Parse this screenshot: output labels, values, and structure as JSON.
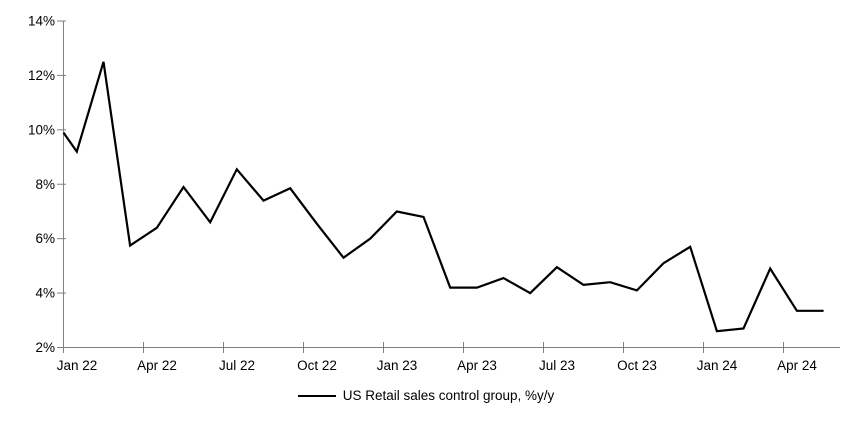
{
  "chart_data": {
    "type": "line",
    "title": "",
    "xlabel": "",
    "ylabel": "",
    "ylim": [
      2,
      14
    ],
    "y_tick_step": 2,
    "grid": false,
    "legend_position": "bottom-center",
    "axis_color": "#808080",
    "background_color": "#ffffff",
    "y_tick_labels": [
      "2%",
      "4%",
      "6%",
      "8%",
      "10%",
      "12%",
      "14%"
    ],
    "x_tick_labels": [
      "Jan 22",
      "Apr 22",
      "Jul 22",
      "Oct 22",
      "Jan 23",
      "Apr 23",
      "Jul 23",
      "Oct 23",
      "Jan 24",
      "Apr 24"
    ],
    "series": [
      {
        "name": "US Retail sales control group, %y/y",
        "color": "#000000",
        "x": [
          "Dec 21",
          "Jan 22",
          "Feb 22",
          "Mar 22",
          "Apr 22",
          "May 22",
          "Jun 22",
          "Jul 22",
          "Aug 22",
          "Sep 22",
          "Oct 22",
          "Nov 22",
          "Dec 22",
          "Jan 23",
          "Feb 23",
          "Mar 23",
          "Apr 23",
          "May 23",
          "Jun 23",
          "Jul 23",
          "Aug 23",
          "Sep 23",
          "Oct 23",
          "Nov 23",
          "Dec 23",
          "Jan 24",
          "Feb 24",
          "Mar 24",
          "Apr 24",
          "May 24"
        ],
        "values": [
          9.9,
          9.2,
          12.5,
          5.75,
          6.4,
          7.9,
          6.6,
          8.55,
          7.4,
          7.85,
          6.55,
          5.3,
          6.0,
          7.0,
          6.8,
          4.2,
          4.2,
          4.55,
          4.0,
          4.95,
          4.3,
          4.4,
          4.1,
          5.1,
          5.7,
          2.6,
          2.7,
          4.9,
          3.35,
          3.35
        ]
      }
    ]
  },
  "legend": {
    "label": "US Retail sales control group, %y/y"
  }
}
